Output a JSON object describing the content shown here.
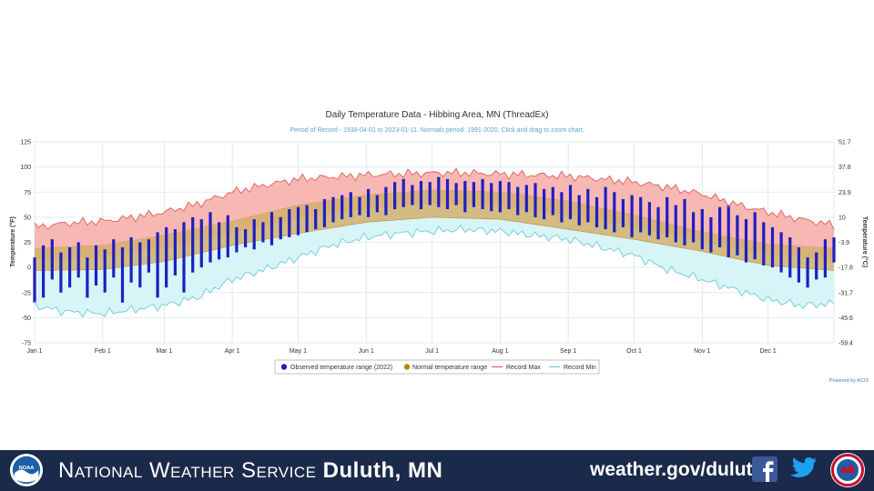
{
  "chart_data": {
    "type": "line",
    "title": "Daily Temperature Data - Hibbing Area, MN (ThreadEx)",
    "subtitle": "Period of Record - 1938-04-01 to 2023-01-11. Normals period: 1991-2020. Click and drag to zoom chart.",
    "ylabel_left": "Temperature (°F)",
    "ylabel_right": "Temperature (°C)",
    "ylim": [
      -75,
      125
    ],
    "y_ticks_f": [
      "125",
      "100",
      "75",
      "50",
      "25",
      "0",
      "-25",
      "-50",
      "-75"
    ],
    "y_ticks_c": [
      "51.7",
      "37.8",
      "23.9",
      "10",
      "-3.9",
      "-17.8",
      "-31.7",
      "-45.6",
      "-59.4"
    ],
    "x_tick_labels": [
      "Jan 1",
      "Feb 1",
      "Mar 1",
      "Apr 1",
      "May 1",
      "Jun 1",
      "Jul 1",
      "Aug 1",
      "Sep 1",
      "Oct 1",
      "Nov 1",
      "Dec 1"
    ],
    "x_tick_days": [
      1,
      32,
      60,
      91,
      121,
      152,
      182,
      213,
      244,
      274,
      305,
      335
    ],
    "days_in_year": 365,
    "legend": [
      {
        "label": "Observed temperature range (2022)",
        "color": "#1f1fbf",
        "marker": "circle"
      },
      {
        "label": "Normal temperature range",
        "color": "#b8860b",
        "marker": "circle"
      },
      {
        "label": "Record Max",
        "color": "#d9534f",
        "marker": "line"
      },
      {
        "label": "Record Min",
        "color": "#63c4d9",
        "marker": "line"
      }
    ],
    "record_max": {
      "name": "Record Max",
      "color": "#d9534f",
      "fill": "#f7b7b3",
      "day": [
        1,
        15,
        32,
        46,
        60,
        75,
        91,
        106,
        121,
        136,
        152,
        167,
        182,
        197,
        213,
        228,
        244,
        259,
        274,
        289,
        305,
        320,
        335,
        350,
        365
      ],
      "value": [
        40,
        44,
        46,
        50,
        55,
        63,
        75,
        82,
        88,
        90,
        92,
        93,
        94,
        94,
        93,
        92,
        91,
        88,
        85,
        80,
        73,
        63,
        55,
        48,
        42
      ]
    },
    "record_min": {
      "name": "Record Min",
      "color": "#63c4d9",
      "fill": "#d7f4f7",
      "day": [
        1,
        15,
        32,
        46,
        60,
        75,
        91,
        106,
        121,
        136,
        152,
        167,
        182,
        197,
        213,
        228,
        244,
        259,
        274,
        289,
        305,
        320,
        335,
        350,
        365
      ],
      "value": [
        -38,
        -44,
        -46,
        -42,
        -38,
        -30,
        -12,
        -2,
        10,
        22,
        30,
        34,
        36,
        38,
        36,
        32,
        28,
        20,
        12,
        -2,
        -12,
        -22,
        -32,
        -38,
        -36
      ]
    },
    "normal_high": {
      "name": "Normal High",
      "color": "#d9a36b",
      "day": [
        1,
        32,
        60,
        91,
        121,
        152,
        182,
        213,
        244,
        274,
        305,
        335,
        365
      ],
      "value": [
        19,
        22,
        32,
        46,
        62,
        72,
        77,
        75,
        66,
        52,
        35,
        23,
        19
      ]
    },
    "normal_low": {
      "name": "Normal Low",
      "color": "#c49850",
      "day": [
        1,
        32,
        60,
        91,
        121,
        152,
        182,
        213,
        244,
        274,
        305,
        335,
        365
      ],
      "value": [
        -3,
        -2,
        6,
        22,
        34,
        45,
        50,
        48,
        38,
        28,
        16,
        2,
        -3
      ]
    },
    "observed_2022": {
      "name": "Observed temperature range (2022)",
      "color": "#1f1fbf",
      "day": [
        1,
        5,
        9,
        13,
        17,
        21,
        25,
        29,
        33,
        37,
        41,
        45,
        49,
        53,
        57,
        61,
        65,
        69,
        73,
        77,
        81,
        85,
        89,
        93,
        97,
        101,
        105,
        109,
        113,
        117,
        121,
        125,
        129,
        133,
        137,
        141,
        145,
        149,
        153,
        157,
        161,
        165,
        169,
        173,
        177,
        181,
        185,
        189,
        193,
        197,
        201,
        205,
        209,
        213,
        217,
        221,
        225,
        229,
        233,
        237,
        241,
        245,
        249,
        253,
        257,
        261,
        265,
        269,
        273,
        277,
        281,
        285,
        289,
        293,
        297,
        301,
        305,
        309,
        313,
        317,
        321,
        325,
        329,
        333,
        337,
        341,
        345,
        349,
        353,
        357,
        361,
        365
      ],
      "low": [
        -35,
        -30,
        -12,
        -25,
        -20,
        -10,
        -30,
        -18,
        -25,
        -10,
        -35,
        -15,
        -20,
        -5,
        -30,
        -20,
        -8,
        -25,
        -5,
        0,
        5,
        8,
        10,
        15,
        20,
        18,
        25,
        22,
        28,
        30,
        32,
        35,
        38,
        40,
        45,
        48,
        50,
        52,
        50,
        55,
        52,
        58,
        60,
        62,
        58,
        62,
        60,
        58,
        62,
        55,
        60,
        58,
        56,
        55,
        58,
        52,
        55,
        50,
        48,
        52,
        45,
        48,
        42,
        45,
        40,
        38,
        35,
        40,
        30,
        35,
        32,
        28,
        30,
        25,
        22,
        25,
        18,
        15,
        20,
        10,
        12,
        5,
        8,
        2,
        0,
        -5,
        -10,
        -15,
        -20,
        -12,
        -10,
        5
      ],
      "high": [
        10,
        22,
        28,
        15,
        20,
        25,
        10,
        22,
        18,
        28,
        20,
        30,
        25,
        28,
        35,
        40,
        38,
        45,
        50,
        48,
        55,
        45,
        52,
        40,
        38,
        48,
        45,
        55,
        50,
        58,
        60,
        62,
        58,
        68,
        70,
        72,
        75,
        70,
        78,
        72,
        80,
        85,
        88,
        82,
        86,
        85,
        90,
        88,
        84,
        86,
        85,
        88,
        84,
        86,
        85,
        80,
        82,
        84,
        78,
        80,
        75,
        82,
        72,
        78,
        70,
        80,
        75,
        68,
        72,
        70,
        65,
        60,
        70,
        62,
        68,
        55,
        58,
        50,
        60,
        62,
        52,
        48,
        55,
        45,
        40,
        35,
        30,
        20,
        10,
        15,
        28,
        30
      ]
    }
  },
  "credit": "Powered by ACIS",
  "footer": {
    "title_prefix": "National Weather Service",
    "title_city": "Duluth, MN",
    "url": "weather.gov/duluth",
    "noaa_text": "NOAA",
    "bg_color": "#1b2a4a"
  }
}
